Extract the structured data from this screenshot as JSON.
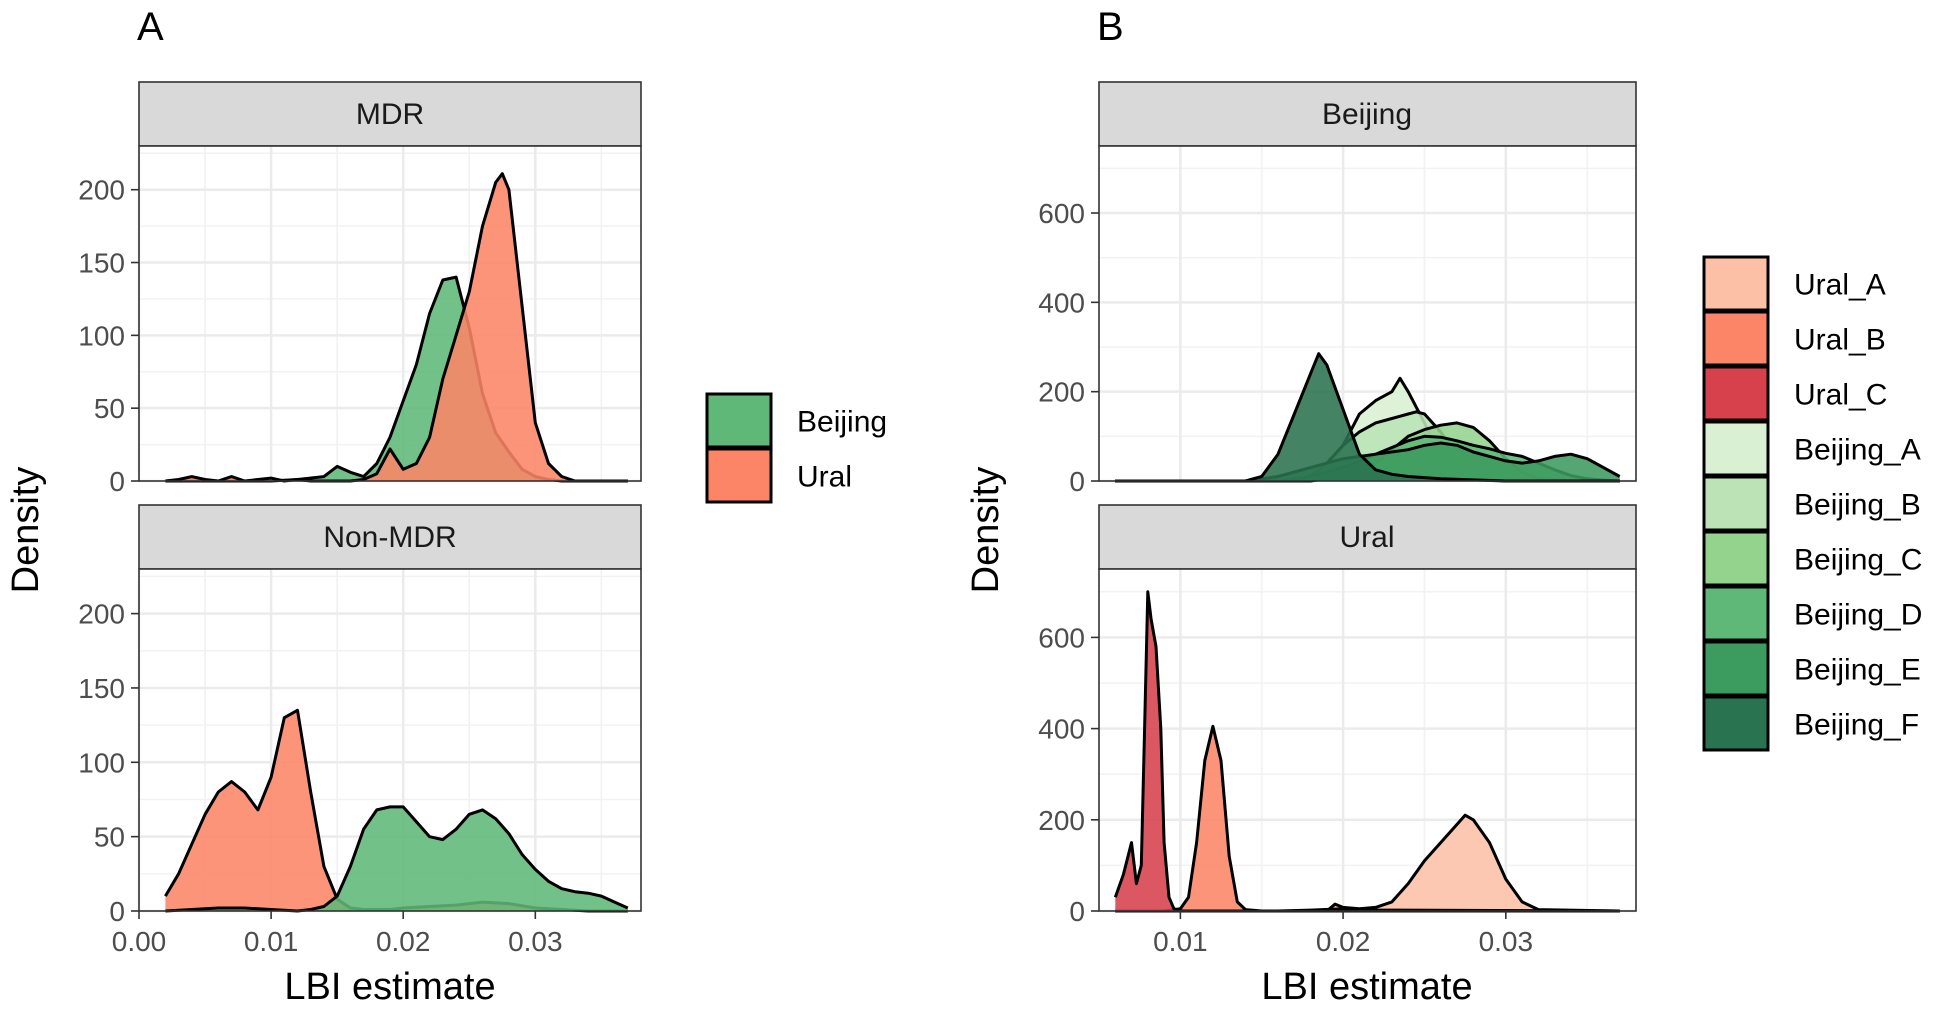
{
  "panels": {
    "A": {
      "letter": "A"
    },
    "B": {
      "letter": "B"
    }
  },
  "chart_data": [
    {
      "type": "area",
      "subtype": "density",
      "panel": "A",
      "xlabel": "LBI estimate",
      "ylabel": "Density",
      "xlim": [
        0.0,
        0.038
      ],
      "ylim": [
        0,
        230
      ],
      "xticks": [
        0.0,
        0.01,
        0.02,
        0.03
      ],
      "xtick_labels": [
        "0.00",
        "0.01",
        "0.02",
        "0.03"
      ],
      "yticks": [
        0,
        50,
        100,
        150,
        200
      ],
      "ytick_labels": [
        "0",
        "50",
        "100",
        "150",
        "200"
      ],
      "grid": true,
      "legend_position": "right",
      "legend": [
        {
          "name": "Beijing",
          "color": "#5fb877"
        },
        {
          "name": "Ural",
          "color": "#fb8566"
        }
      ],
      "facets": [
        {
          "label": "MDR",
          "series": [
            {
              "name": "Beijing",
              "color": "#5fb877",
              "x": [
                0.002,
                0.004,
                0.006,
                0.008,
                0.01,
                0.012,
                0.014,
                0.015,
                0.016,
                0.017,
                0.018,
                0.019,
                0.02,
                0.021,
                0.022,
                0.023,
                0.024,
                0.025,
                0.026,
                0.027,
                0.028,
                0.029,
                0.03,
                0.031,
                0.032,
                0.033,
                0.035,
                0.037
              ],
              "y": [
                0,
                0,
                0,
                0,
                0,
                1,
                3,
                10,
                6,
                3,
                12,
                30,
                55,
                80,
                115,
                138,
                140,
                105,
                60,
                33,
                20,
                8,
                3,
                1,
                0,
                0,
                0,
                0
              ]
            },
            {
              "name": "Ural",
              "color": "#fb8566",
              "x": [
                0.002,
                0.003,
                0.004,
                0.005,
                0.006,
                0.007,
                0.008,
                0.009,
                0.01,
                0.011,
                0.012,
                0.013,
                0.014,
                0.016,
                0.017,
                0.018,
                0.019,
                0.02,
                0.021,
                0.022,
                0.023,
                0.024,
                0.025,
                0.026,
                0.027,
                0.0275,
                0.028,
                0.029,
                0.03,
                0.031,
                0.032,
                0.033,
                0.035,
                0.037
              ],
              "y": [
                0,
                1,
                3,
                1,
                0,
                3,
                0,
                1,
                2,
                0,
                1,
                0,
                0,
                0,
                1,
                5,
                22,
                8,
                12,
                30,
                70,
                100,
                130,
                175,
                205,
                211,
                200,
                120,
                40,
                12,
                3,
                0,
                0,
                0
              ]
            }
          ]
        },
        {
          "label": "Non-MDR",
          "series": [
            {
              "name": "Ural",
              "color": "#fb8566",
              "x": [
                0.002,
                0.003,
                0.004,
                0.005,
                0.006,
                0.007,
                0.008,
                0.009,
                0.01,
                0.011,
                0.012,
                0.013,
                0.014,
                0.015,
                0.016,
                0.017,
                0.018,
                0.019,
                0.02,
                0.022,
                0.024,
                0.026,
                0.028,
                0.03,
                0.032,
                0.034,
                0.037
              ],
              "y": [
                10,
                25,
                45,
                65,
                80,
                87,
                80,
                68,
                90,
                130,
                135,
                80,
                30,
                8,
                2,
                1,
                1,
                1,
                2,
                3,
                4,
                6,
                5,
                2,
                1,
                0,
                0
              ]
            },
            {
              "name": "Beijing",
              "color": "#5fb877",
              "x": [
                0.002,
                0.004,
                0.006,
                0.008,
                0.01,
                0.012,
                0.013,
                0.014,
                0.015,
                0.016,
                0.017,
                0.018,
                0.019,
                0.02,
                0.021,
                0.022,
                0.023,
                0.024,
                0.025,
                0.026,
                0.027,
                0.028,
                0.029,
                0.03,
                0.031,
                0.032,
                0.033,
                0.034,
                0.035,
                0.036,
                0.037
              ],
              "y": [
                0,
                1,
                2,
                2,
                1,
                0,
                1,
                3,
                10,
                30,
                55,
                68,
                70,
                70,
                60,
                50,
                48,
                55,
                65,
                68,
                62,
                52,
                38,
                28,
                20,
                15,
                13,
                12,
                10,
                6,
                2
              ]
            }
          ]
        }
      ]
    },
    {
      "type": "area",
      "subtype": "density",
      "panel": "B",
      "xlabel": "LBI estimate",
      "ylabel": "Density",
      "xlim": [
        0.005,
        0.038
      ],
      "ylim": [
        0,
        750
      ],
      "xticks": [
        0.01,
        0.02,
        0.03
      ],
      "xtick_labels": [
        "0.01",
        "0.02",
        "0.03"
      ],
      "yticks": [
        0,
        200,
        400,
        600
      ],
      "ytick_labels": [
        "0",
        "200",
        "400",
        "600"
      ],
      "grid": true,
      "legend_position": "right",
      "legend": [
        {
          "name": "Ural_A",
          "color": "#fcc0a7"
        },
        {
          "name": "Ural_B",
          "color": "#fb8566"
        },
        {
          "name": "Ural_C",
          "color": "#d6414c"
        },
        {
          "name": "Beijing_A",
          "color": "#d9f0d3"
        },
        {
          "name": "Beijing_B",
          "color": "#bbe3b6"
        },
        {
          "name": "Beijing_C",
          "color": "#94d38e"
        },
        {
          "name": "Beijing_D",
          "color": "#5fb877"
        },
        {
          "name": "Beijing_E",
          "color": "#3c9b5e"
        },
        {
          "name": "Beijing_F",
          "color": "#2a7350"
        }
      ],
      "facets": [
        {
          "label": "Beijing",
          "series": [
            {
              "name": "Beijing_A",
              "color": "#d9f0d3",
              "x": [
                0.006,
                0.018,
                0.019,
                0.02,
                0.021,
                0.022,
                0.023,
                0.0235,
                0.024,
                0.025,
                0.026,
                0.027,
                0.028,
                0.03,
                0.032,
                0.037
              ],
              "y": [
                0,
                0,
                20,
                80,
                150,
                180,
                200,
                230,
                200,
                130,
                50,
                15,
                5,
                0,
                0,
                0
              ]
            },
            {
              "name": "Beijing_B",
              "color": "#bbe3b6",
              "x": [
                0.006,
                0.017,
                0.018,
                0.019,
                0.02,
                0.021,
                0.022,
                0.023,
                0.024,
                0.0245,
                0.025,
                0.026,
                0.027,
                0.028,
                0.029,
                0.03,
                0.032,
                0.037
              ],
              "y": [
                0,
                0,
                10,
                40,
                80,
                110,
                130,
                140,
                150,
                155,
                150,
                110,
                60,
                25,
                8,
                2,
                0,
                0
              ]
            },
            {
              "name": "Beijing_C",
              "color": "#94d38e",
              "x": [
                0.006,
                0.018,
                0.02,
                0.022,
                0.023,
                0.024,
                0.025,
                0.026,
                0.027,
                0.028,
                0.029,
                0.03,
                0.031,
                0.032,
                0.034,
                0.037
              ],
              "y": [
                0,
                0,
                10,
                40,
                70,
                100,
                115,
                125,
                130,
                120,
                90,
                50,
                20,
                5,
                0,
                0
              ]
            },
            {
              "name": "Beijing_D",
              "color": "#5fb877",
              "x": [
                0.006,
                0.016,
                0.018,
                0.02,
                0.022,
                0.024,
                0.025,
                0.026,
                0.027,
                0.028,
                0.029,
                0.03,
                0.031,
                0.032,
                0.033,
                0.034,
                0.035,
                0.036,
                0.037
              ],
              "y": [
                0,
                0,
                10,
                30,
                60,
                90,
                100,
                98,
                90,
                80,
                72,
                62,
                55,
                40,
                25,
                12,
                5,
                2,
                0
              ]
            },
            {
              "name": "Beijing_E",
              "color": "#3c9b5e",
              "x": [
                0.006,
                0.014,
                0.016,
                0.018,
                0.02,
                0.022,
                0.024,
                0.025,
                0.026,
                0.027,
                0.028,
                0.029,
                0.03,
                0.031,
                0.032,
                0.033,
                0.034,
                0.035,
                0.036,
                0.037
              ],
              "y": [
                0,
                0,
                10,
                30,
                50,
                60,
                70,
                80,
                85,
                80,
                65,
                55,
                45,
                40,
                45,
                55,
                60,
                50,
                30,
                10
              ]
            },
            {
              "name": "Beijing_F",
              "color": "#2a7350",
              "x": [
                0.006,
                0.014,
                0.015,
                0.016,
                0.017,
                0.018,
                0.0185,
                0.019,
                0.02,
                0.021,
                0.022,
                0.023,
                0.024,
                0.026,
                0.03,
                0.037
              ],
              "y": [
                0,
                0,
                10,
                60,
                150,
                240,
                285,
                260,
                160,
                60,
                25,
                15,
                10,
                5,
                0,
                0
              ]
            }
          ]
        },
        {
          "label": "Ural",
          "series": [
            {
              "name": "Ural_A",
              "color": "#fcc0a7",
              "x": [
                0.006,
                0.019,
                0.0195,
                0.02,
                0.021,
                0.022,
                0.023,
                0.024,
                0.025,
                0.026,
                0.027,
                0.0275,
                0.028,
                0.029,
                0.03,
                0.031,
                0.032,
                0.037
              ],
              "y": [
                0,
                0,
                15,
                8,
                5,
                8,
                20,
                60,
                110,
                150,
                190,
                210,
                200,
                150,
                70,
                20,
                3,
                0
              ]
            },
            {
              "name": "Ural_B",
              "color": "#fb8566",
              "x": [
                0.006,
                0.009,
                0.01,
                0.0105,
                0.011,
                0.0115,
                0.012,
                0.0125,
                0.013,
                0.0135,
                0.014,
                0.015,
                0.016,
                0.018,
                0.02,
                0.022,
                0.037
              ],
              "y": [
                0,
                0,
                5,
                30,
                150,
                330,
                405,
                330,
                120,
                20,
                3,
                0,
                0,
                2,
                5,
                2,
                0
              ]
            },
            {
              "name": "Ural_C",
              "color": "#d6414c",
              "x": [
                0.006,
                0.0065,
                0.007,
                0.0073,
                0.0076,
                0.0078,
                0.008,
                0.0082,
                0.0085,
                0.0088,
                0.009,
                0.0093,
                0.0096,
                0.01,
                0.011,
                0.037
              ],
              "y": [
                30,
                80,
                150,
                60,
                100,
                400,
                700,
                640,
                580,
                400,
                150,
                30,
                5,
                0,
                0,
                0
              ]
            }
          ]
        }
      ]
    }
  ]
}
